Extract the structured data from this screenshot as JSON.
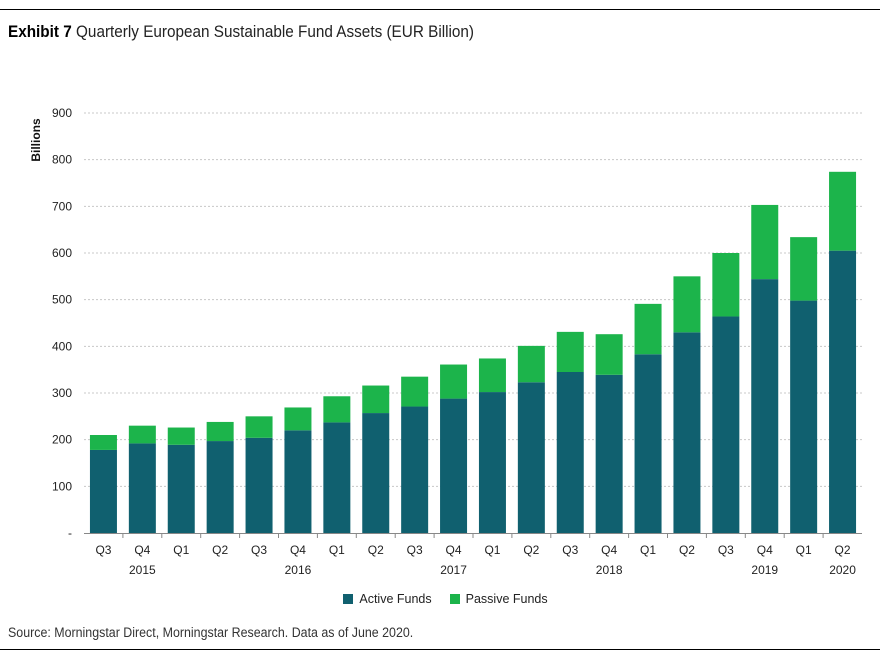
{
  "header": {
    "exhibit": "Exhibit 7",
    "title": "Quarterly European Sustainable Fund Assets (EUR Billion)"
  },
  "footer": {
    "source": "Source: Morningstar Direct, Morningstar Research. Data as of June 2020."
  },
  "colors": {
    "active": "#10606f",
    "passive": "#1cb44b",
    "grid": "#c8c8c8",
    "axis": "#888888"
  },
  "chart_data": {
    "type": "bar",
    "stacked": true,
    "ylabel": "Billions",
    "ylim": [
      0,
      900
    ],
    "yticks": [
      0,
      100,
      200,
      300,
      400,
      500,
      600,
      700,
      800,
      900
    ],
    "ytick_labels": [
      "-",
      "100",
      "200",
      "300",
      "400",
      "500",
      "600",
      "700",
      "800",
      "900"
    ],
    "grid": true,
    "legend_position": "bottom-center",
    "categories": [
      "Q3",
      "Q4",
      "Q1",
      "Q2",
      "Q3",
      "Q4",
      "Q1",
      "Q2",
      "Q3",
      "Q4",
      "Q1",
      "Q2",
      "Q3",
      "Q4",
      "Q1",
      "Q2",
      "Q3",
      "Q4",
      "Q1",
      "Q2"
    ],
    "year_labels": [
      "",
      "2015",
      "",
      "",
      "",
      "2016",
      "",
      "",
      "",
      "2017",
      "",
      "",
      "",
      "2018",
      "",
      "",
      "",
      "2019",
      "",
      "2020"
    ],
    "series": [
      {
        "name": "Active Funds",
        "color": "#10606f",
        "values": [
          178,
          192,
          189,
          197,
          204,
          220,
          237,
          257,
          271,
          288,
          302,
          323,
          345,
          339,
          383,
          430,
          464,
          544,
          498,
          605
        ]
      },
      {
        "name": "Passive Funds",
        "color": "#1cb44b",
        "values": [
          32,
          38,
          37,
          41,
          46,
          49,
          56,
          59,
          64,
          73,
          72,
          78,
          86,
          87,
          108,
          120,
          136,
          159,
          136,
          169
        ]
      }
    ]
  }
}
